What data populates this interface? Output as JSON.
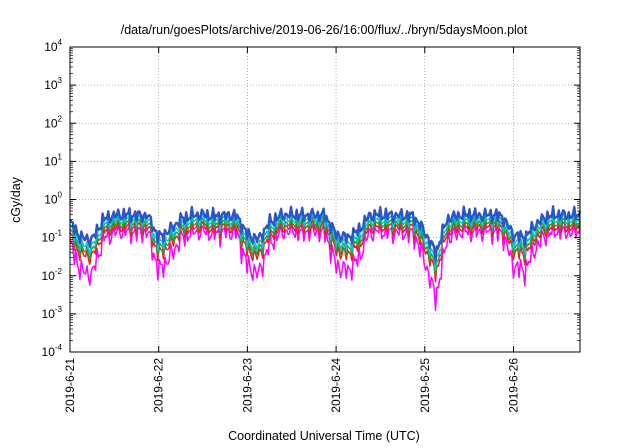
{
  "chart_data": {
    "type": "line",
    "title": "/data/run/goesPlots/archive/2019-06-26/16:00/flux/../bryn/5daysMoon.plot",
    "xlabel": "Coordinated Universal Time (UTC)",
    "ylabel": "cGy/day",
    "yscale": "log",
    "ylim": [
      0.0001,
      10000
    ],
    "xlim": [
      "2019-06-21",
      "2019-06-26 18:00"
    ],
    "x_tick_labels": [
      "2019-6-21",
      "2019-6-22",
      "2019-6-23",
      "2019-6-24",
      "2019-6-25",
      "2019-6-26"
    ],
    "y_tick_labels": [
      {
        "base": "10",
        "exp": "4"
      },
      {
        "base": "10",
        "exp": "3"
      },
      {
        "base": "10",
        "exp": "2"
      },
      {
        "base": "10",
        "exp": "1"
      },
      {
        "base": "10",
        "exp": "0"
      },
      {
        "base": "10",
        "exp": "-1"
      },
      {
        "base": "10",
        "exp": "-2"
      },
      {
        "base": "10",
        "exp": "-3"
      },
      {
        "base": "10",
        "exp": "-4"
      }
    ],
    "grid": true,
    "legend": "none",
    "base_profile": {
      "x": [
        "2019-06-21 00:00",
        "2019-06-21 03:00",
        "2019-06-21 06:00",
        "2019-06-21 09:00",
        "2019-06-21 12:00",
        "2019-06-21 15:00",
        "2019-06-21 18:00",
        "2019-06-21 21:00",
        "2019-06-22 00:00",
        "2019-06-22 03:00",
        "2019-06-22 06:00",
        "2019-06-22 09:00",
        "2019-06-22 12:00",
        "2019-06-22 15:00",
        "2019-06-22 18:00",
        "2019-06-22 21:00",
        "2019-06-23 00:00",
        "2019-06-23 03:00",
        "2019-06-23 06:00",
        "2019-06-23 09:00",
        "2019-06-23 12:00",
        "2019-06-23 15:00",
        "2019-06-23 18:00",
        "2019-06-23 21:00",
        "2019-06-24 00:00",
        "2019-06-24 03:00",
        "2019-06-24 06:00",
        "2019-06-24 09:00",
        "2019-06-24 12:00",
        "2019-06-24 15:00",
        "2019-06-24 18:00",
        "2019-06-24 21:00",
        "2019-06-25 00:00",
        "2019-06-25 03:00",
        "2019-06-25 06:00",
        "2019-06-25 09:00",
        "2019-06-25 12:00",
        "2019-06-25 15:00",
        "2019-06-25 18:00",
        "2019-06-25 21:00",
        "2019-06-26 00:00",
        "2019-06-26 03:00",
        "2019-06-26 06:00",
        "2019-06-26 09:00",
        "2019-06-26 12:00",
        "2019-06-26 15:00",
        "2019-06-26 18:00"
      ],
      "y": [
        0.25,
        0.1,
        0.09,
        0.3,
        0.38,
        0.4,
        0.38,
        0.38,
        0.1,
        0.16,
        0.3,
        0.38,
        0.4,
        0.36,
        0.38,
        0.38,
        0.12,
        0.09,
        0.25,
        0.38,
        0.4,
        0.38,
        0.4,
        0.38,
        0.12,
        0.1,
        0.15,
        0.38,
        0.4,
        0.38,
        0.38,
        0.36,
        0.14,
        0.04,
        0.3,
        0.38,
        0.4,
        0.38,
        0.4,
        0.36,
        0.12,
        0.1,
        0.22,
        0.36,
        0.4,
        0.38,
        0.4
      ]
    },
    "series": [
      {
        "color": "#ff00ff",
        "factor": 0.38,
        "dip_depth": 1.8,
        "width": 1.5
      },
      {
        "color": "#ee1c24",
        "factor": 0.5,
        "dip_depth": 1.25,
        "width": 1.5
      },
      {
        "color": "#2ca02c",
        "factor": 0.62,
        "dip_depth": 1.2,
        "width": 1.5
      },
      {
        "color": "#00c8d6",
        "factor": 0.78,
        "dip_depth": 1.15,
        "width": 1.5
      },
      {
        "color": "#d62728",
        "factor": 1.05,
        "dip_depth": 1.1,
        "width": 1.3
      },
      {
        "color": "#2a57c8",
        "factor": 1.0,
        "dip_depth": 1.0,
        "width": 2.4
      }
    ]
  }
}
